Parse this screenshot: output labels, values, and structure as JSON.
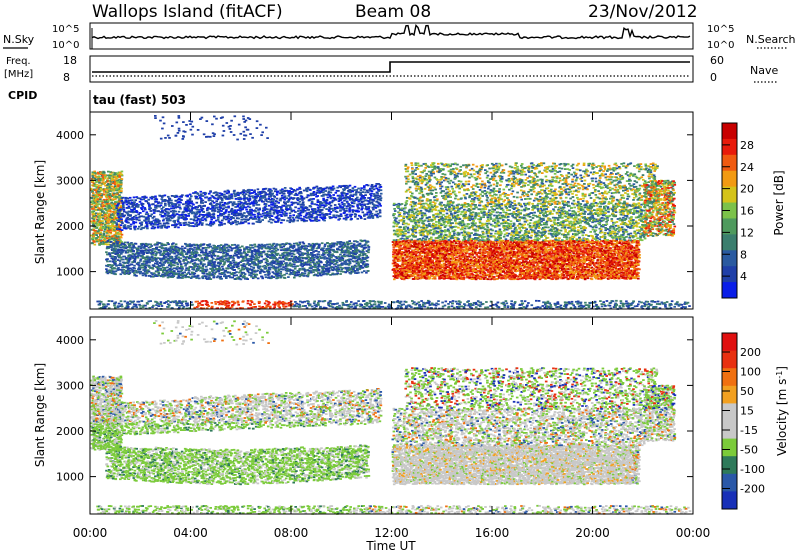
{
  "header": {
    "site": "Wallops Island (fitACF)",
    "beam": "Beam 08",
    "date": "23/Nov/2012"
  },
  "param_panel": {
    "nsky_label": "N.Sky",
    "nsky_top": "10^5",
    "nsky_bottom": "10^0",
    "nsearch_label": "N.Search",
    "nsearch_top": "10^5",
    "nsearch_bottom": "10^0",
    "freq_label": "Freq.",
    "freq_unit": "[MHz]",
    "freq_top": "18",
    "freq_bottom": "8",
    "nave_label": "Nave",
    "nave_top": "60",
    "nave_bottom": "0",
    "cpid_label": "CPID",
    "cpid_value": "tau (fast) 503"
  },
  "colors": {
    "power": [
      "#0a1ee8",
      "#1f3fa8",
      "#2a5aa0",
      "#3b7e6e",
      "#4f9a5e",
      "#7cc24a",
      "#d4c31a",
      "#f29a12",
      "#f05a10",
      "#e81a0a",
      "#c80000"
    ],
    "velocity": [
      "#1830b8",
      "#2a58a8",
      "#2e7a5a",
      "#7bcb3a",
      "#c8c8c8",
      "#c8c8c8",
      "#f2a020",
      "#f07010",
      "#e83010",
      "#e01010"
    ]
  },
  "chart_data": [
    {
      "type": "heatmap",
      "name": "power",
      "xlabel": "",
      "ylabel": "Slant Range [km]",
      "x_ticks": [
        "00:00",
        "04:00",
        "08:00",
        "12:00",
        "16:00",
        "20:00",
        "00:00"
      ],
      "xlim": [
        0,
        24
      ],
      "ylim": [
        180,
        4500
      ],
      "y_ticks": [
        1000,
        2000,
        3000,
        4000
      ],
      "colorbar": {
        "label": "Power [dB]",
        "ticks": [
          4,
          8,
          12,
          16,
          20,
          24,
          28
        ],
        "range": [
          0,
          32
        ]
      }
    },
    {
      "type": "heatmap",
      "name": "velocity",
      "xlabel": "Time UT",
      "ylabel": "Slant Range [km]",
      "x_ticks": [
        "00:00",
        "04:00",
        "08:00",
        "12:00",
        "16:00",
        "20:00",
        "00:00"
      ],
      "xlim": [
        0,
        24
      ],
      "ylim": [
        180,
        4500
      ],
      "y_ticks": [
        1000,
        2000,
        3000,
        4000
      ],
      "colorbar": {
        "label": "Velocity [m s^-1]",
        "ticks": [
          200,
          100,
          50,
          15,
          -15,
          -50,
          -100,
          -200
        ]
      }
    }
  ]
}
